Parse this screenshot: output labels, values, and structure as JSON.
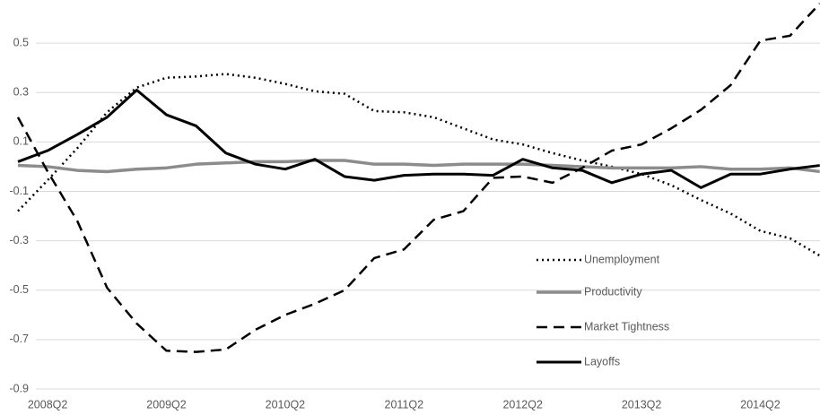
{
  "chart_data": {
    "type": "line",
    "categories": [
      null,
      "2008Q2",
      null,
      null,
      null,
      "2009Q2",
      null,
      null,
      null,
      "2010Q2",
      null,
      null,
      null,
      "2011Q2",
      null,
      null,
      null,
      "2012Q2",
      null,
      null,
      null,
      "2013Q2",
      null,
      null,
      null,
      "2014Q2",
      null,
      null
    ],
    "series": [
      {
        "name": "Unemployment",
        "color": "#000000",
        "dash": "dotted",
        "values": [
          -0.18,
          -0.055,
          0.075,
          0.22,
          0.32,
          0.36,
          0.365,
          0.375,
          0.36,
          0.335,
          0.305,
          0.295,
          0.225,
          0.22,
          0.2,
          0.155,
          0.11,
          0.09,
          0.055,
          0.025,
          0.0,
          -0.03,
          -0.075,
          -0.135,
          -0.19,
          -0.26,
          -0.29,
          -0.36
        ]
      },
      {
        "name": "Productivity",
        "color": "#8c8c8c",
        "dash": "solid",
        "values": [
          0.005,
          0.0,
          -0.015,
          -0.02,
          -0.01,
          -0.005,
          0.01,
          0.015,
          0.02,
          0.02,
          0.025,
          0.025,
          0.01,
          0.01,
          0.005,
          0.01,
          0.01,
          0.01,
          0.005,
          0.0,
          -0.005,
          -0.005,
          -0.005,
          0.0,
          -0.01,
          -0.01,
          -0.005,
          -0.02
        ]
      },
      {
        "name": "Market Tightness",
        "color": "#000000",
        "dash": "dashed",
        "values": [
          0.2,
          -0.02,
          -0.22,
          -0.49,
          -0.635,
          -0.745,
          -0.75,
          -0.74,
          -0.66,
          -0.6,
          -0.555,
          -0.5,
          -0.37,
          -0.335,
          -0.215,
          -0.18,
          -0.045,
          -0.04,
          -0.065,
          -0.005,
          0.065,
          0.09,
          0.155,
          0.23,
          0.33,
          0.51,
          0.53,
          0.66
        ]
      },
      {
        "name": "Layoffs",
        "color": "#000000",
        "dash": "solid",
        "values": [
          0.02,
          0.065,
          0.13,
          0.2,
          0.31,
          0.21,
          0.165,
          0.055,
          0.01,
          -0.01,
          0.03,
          -0.04,
          -0.055,
          -0.035,
          -0.03,
          -0.03,
          -0.035,
          0.03,
          -0.005,
          -0.015,
          -0.065,
          -0.03,
          -0.015,
          -0.085,
          -0.03,
          -0.03,
          -0.01,
          0.005
        ]
      }
    ],
    "ylim": [
      -0.9,
      0.7
    ],
    "yticks": [
      -0.9,
      -0.7,
      -0.5,
      -0.3,
      -0.1,
      0.1,
      0.3,
      0.5
    ],
    "grid": true,
    "legend": "right"
  }
}
